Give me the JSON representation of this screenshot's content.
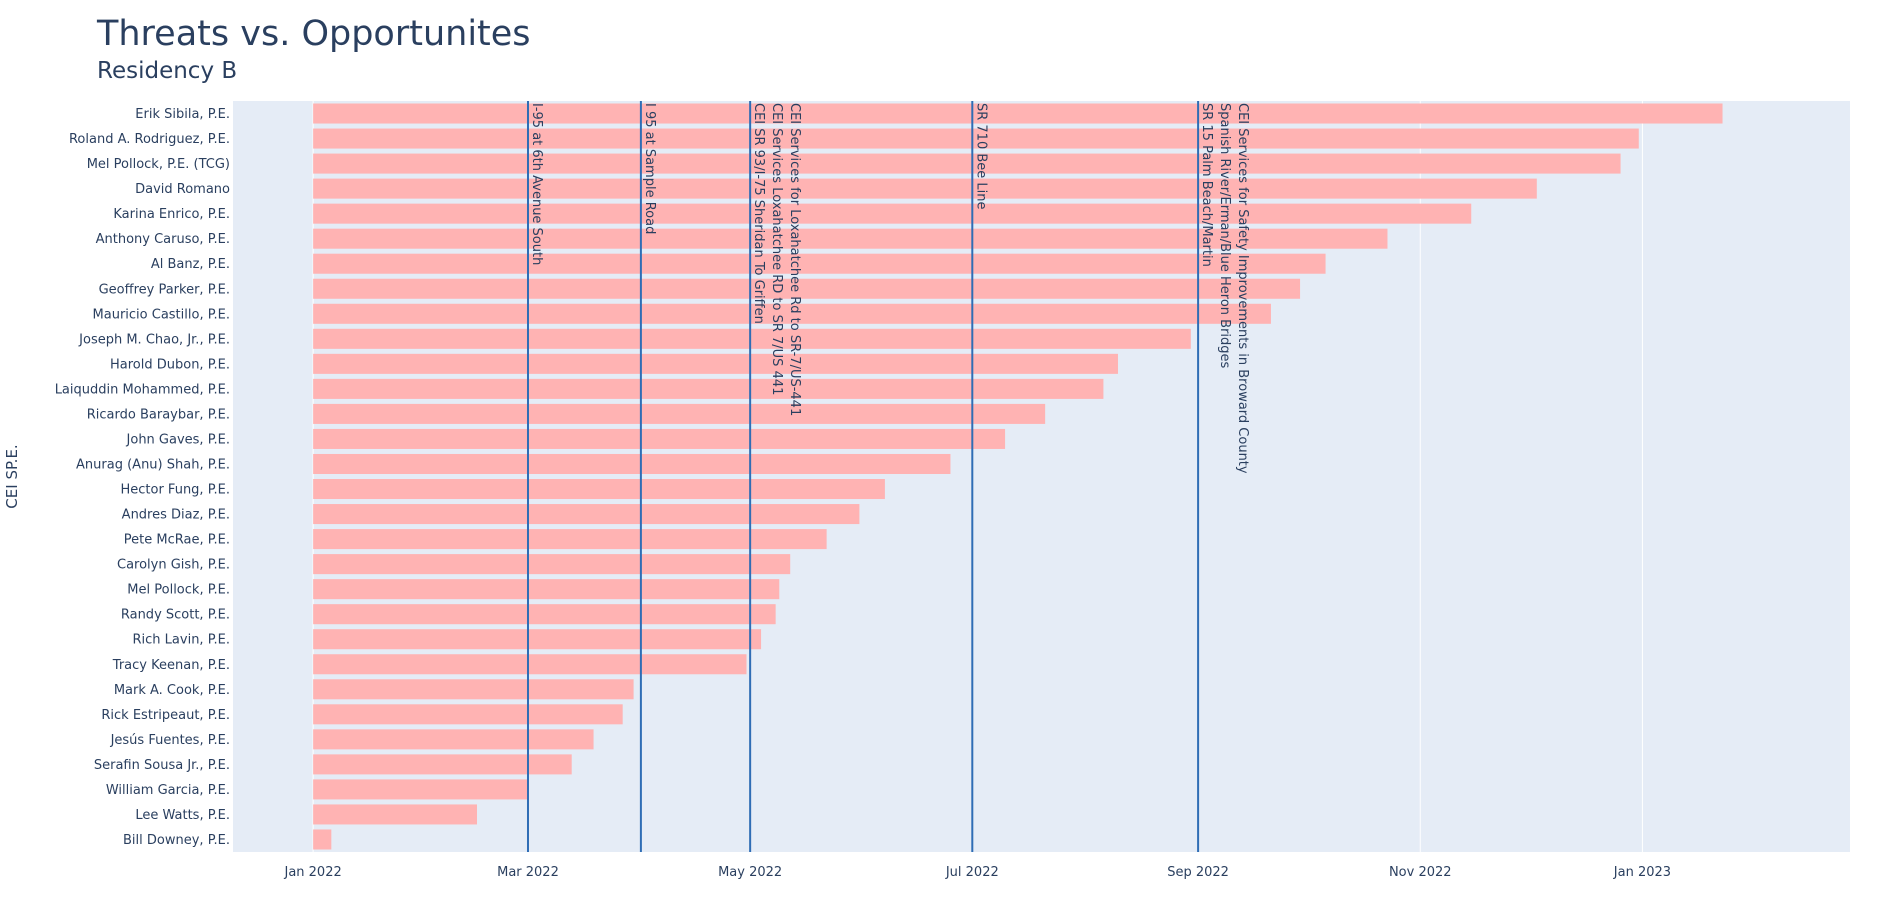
{
  "chart_data": {
    "type": "bar",
    "orientation": "horizontal",
    "title": "Threats vs. Opportunites",
    "subtitle": "Residency B",
    "ylabel": "CEI SP.E.",
    "xaxis_type": "date",
    "xlim": [
      "2021-12-10",
      "2023-02-27"
    ],
    "xticks": [
      {
        "date": "2022-01-01",
        "label": "Jan 2022"
      },
      {
        "date": "2022-03-01",
        "label": "Mar 2022"
      },
      {
        "date": "2022-05-01",
        "label": "May 2022"
      },
      {
        "date": "2022-07-01",
        "label": "Jul 2022"
      },
      {
        "date": "2022-09-01",
        "label": "Sep 2022"
      },
      {
        "date": "2022-11-01",
        "label": "Nov 2022"
      },
      {
        "date": "2023-01-01",
        "label": "Jan 2023"
      }
    ],
    "bar_base": "2022-01-01",
    "bar_color": "#ffb3b3",
    "bars": [
      {
        "name": "Erik Sibila, P.E.",
        "end": "2023-01-23"
      },
      {
        "name": "Roland A. Rodriguez, P.E.",
        "end": "2022-12-31"
      },
      {
        "name": "Mel Pollock, P.E. (TCG)",
        "end": "2022-12-26"
      },
      {
        "name": "David Romano",
        "end": "2022-12-03"
      },
      {
        "name": "Karina Enrico, P.E.",
        "end": "2022-11-15"
      },
      {
        "name": "Anthony Caruso, P.E.",
        "end": "2022-10-23"
      },
      {
        "name": "Al Banz, P.E.",
        "end": "2022-10-06"
      },
      {
        "name": "Geoffrey Parker, P.E.",
        "end": "2022-09-29"
      },
      {
        "name": "Mauricio Castillo, P.E.",
        "end": "2022-09-21"
      },
      {
        "name": "Joseph M. Chao, Jr., P.E.",
        "end": "2022-08-30"
      },
      {
        "name": "Harold Dubon, P.E.",
        "end": "2022-08-10"
      },
      {
        "name": "Laiquddin Mohammed, P.E.",
        "end": "2022-08-06"
      },
      {
        "name": "Ricardo Baraybar, P.E.",
        "end": "2022-07-21"
      },
      {
        "name": "John Gaves, P.E.",
        "end": "2022-07-10"
      },
      {
        "name": "Anurag (Anu) Shah, P.E.",
        "end": "2022-06-25"
      },
      {
        "name": "Hector Fung, P.E.",
        "end": "2022-06-07"
      },
      {
        "name": "Andres Diaz, P.E.",
        "end": "2022-05-31"
      },
      {
        "name": "Pete McRae, P.E.",
        "end": "2022-05-22"
      },
      {
        "name": "Carolyn Gish, P.E.",
        "end": "2022-05-12"
      },
      {
        "name": "Mel Pollock, P.E.",
        "end": "2022-05-09"
      },
      {
        "name": "Randy Scott, P.E.",
        "end": "2022-05-08"
      },
      {
        "name": "Rich Lavin, P.E.",
        "end": "2022-05-04"
      },
      {
        "name": "Tracy Keenan, P.E.",
        "end": "2022-04-30"
      },
      {
        "name": "Mark A. Cook, P.E.",
        "end": "2022-03-30"
      },
      {
        "name": "Rick Estripeaut, P.E.",
        "end": "2022-03-27"
      },
      {
        "name": "Jesús Fuentes, P.E.",
        "end": "2022-03-19"
      },
      {
        "name": "Serafin Sousa Jr., P.E.",
        "end": "2022-03-13"
      },
      {
        "name": "William Garcia, P.E.",
        "end": "2022-03-01"
      },
      {
        "name": "Lee Watts, P.E.",
        "end": "2022-02-15"
      },
      {
        "name": "Bill Downey, P.E.",
        "end": "2022-01-06"
      }
    ],
    "vlines": [
      {
        "date": "2022-03-01",
        "color": "#2f6db5",
        "labels": [
          "I-95 at 6th Avenue South"
        ]
      },
      {
        "date": "2022-04-01",
        "color": "#2f6db5",
        "labels": [
          "I 95 at Sample Road"
        ]
      },
      {
        "date": "2022-05-01",
        "color": "#2f6db5",
        "labels": [
          "CEI Services for Loxahatchee Rd to SR-7/US-441",
          "CEI Services Loxahatchee RD to SR 7/US 441",
          "CEI SR 93/I-75 Sheridan To Griffen"
        ]
      },
      {
        "date": "2022-07-01",
        "color": "#2f6db5",
        "labels": [
          "SR 710 Bee Line"
        ]
      },
      {
        "date": "2022-09-01",
        "color": "#2f6db5",
        "labels": [
          "CEI Services for Safety Improvements in Broward County",
          "Spanish River/Erman/Blue Heron Bridges",
          "SR 15 Palm Beach/Martin"
        ]
      }
    ],
    "plot_bgcolor": "#e5ecf6",
    "gridlines": true,
    "legend": "none"
  }
}
